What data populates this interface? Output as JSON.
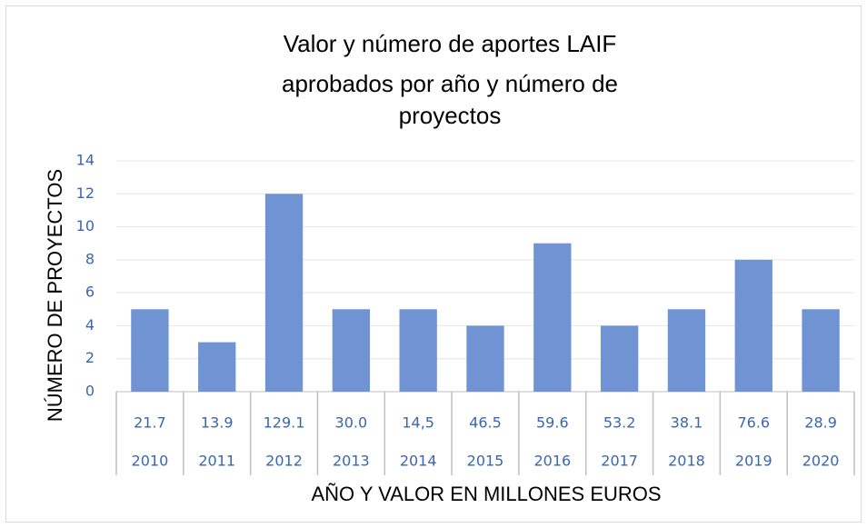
{
  "chart_data": {
    "type": "bar",
    "title": [
      "Valor y número de aportes LAIF",
      "aprobados por año y número de",
      "proyectos"
    ],
    "y_label": "NÚMERO DE PROYECTOS",
    "x_label": "AÑO Y VALOR EN MILLONES EUROS",
    "categories": [
      "2010",
      "2011",
      "2012",
      "2013",
      "2014",
      "2015",
      "2016",
      "2017",
      "2018",
      "2019",
      "2020"
    ],
    "category_sublabels": [
      "21.7",
      "13.9",
      "129.1",
      "30.0",
      "14,5",
      "46.5",
      "59.6",
      "53.2",
      "38.1",
      "76.6",
      "28.9"
    ],
    "values": [
      5,
      3,
      12,
      5,
      5,
      4,
      9,
      4,
      5,
      8,
      5
    ],
    "color": "#7094d3",
    "ylim": [
      0,
      14
    ],
    "yticks": [
      0,
      2,
      4,
      6,
      8,
      10,
      12,
      14
    ],
    "grid": true
  }
}
